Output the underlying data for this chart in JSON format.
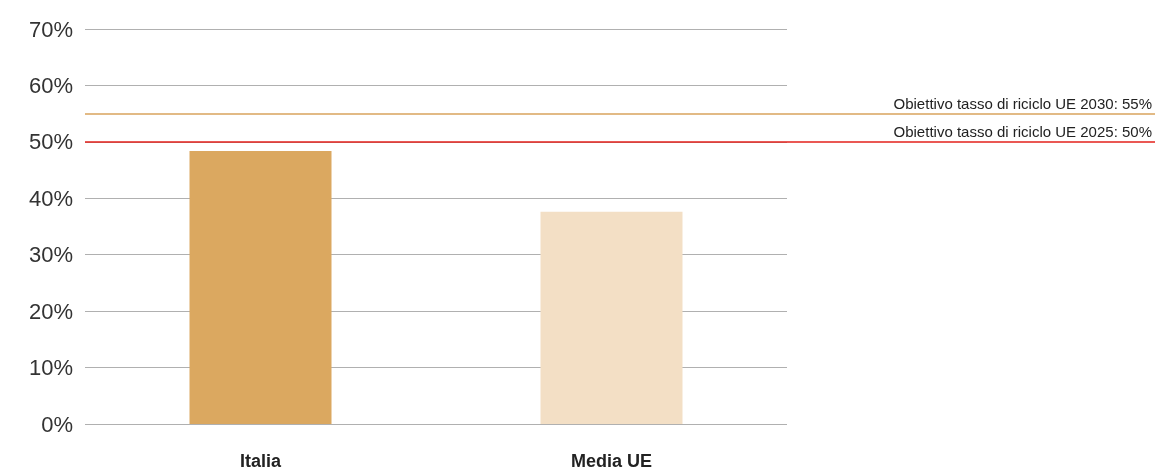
{
  "chart_data": {
    "type": "bar",
    "categories": [
      "Italia",
      "Media UE"
    ],
    "values": [
      48.4,
      37.6
    ],
    "colors": [
      "#dba860",
      "#f3dfc5"
    ],
    "ylim": [
      0,
      70
    ],
    "yticks": [
      {
        "value": 0,
        "label": "0%"
      },
      {
        "value": 10,
        "label": "10%"
      },
      {
        "value": 20,
        "label": "20%"
      },
      {
        "value": 30,
        "label": "30%"
      },
      {
        "value": 40,
        "label": "40%"
      },
      {
        "value": 50,
        "label": "50%"
      },
      {
        "value": 60,
        "label": "60%"
      },
      {
        "value": 70,
        "label": "70%"
      }
    ],
    "grid": "y",
    "ref_lines": [
      {
        "axis": "y",
        "value": 55,
        "label": "Obiettivo tasso di riciclo UE 2030: 55%",
        "color": "#d9a35c"
      },
      {
        "axis": "y",
        "value": 50,
        "label": "Obiettivo tasso di riciclo UE 2025: 50%",
        "color": "#e3201b"
      }
    ]
  }
}
